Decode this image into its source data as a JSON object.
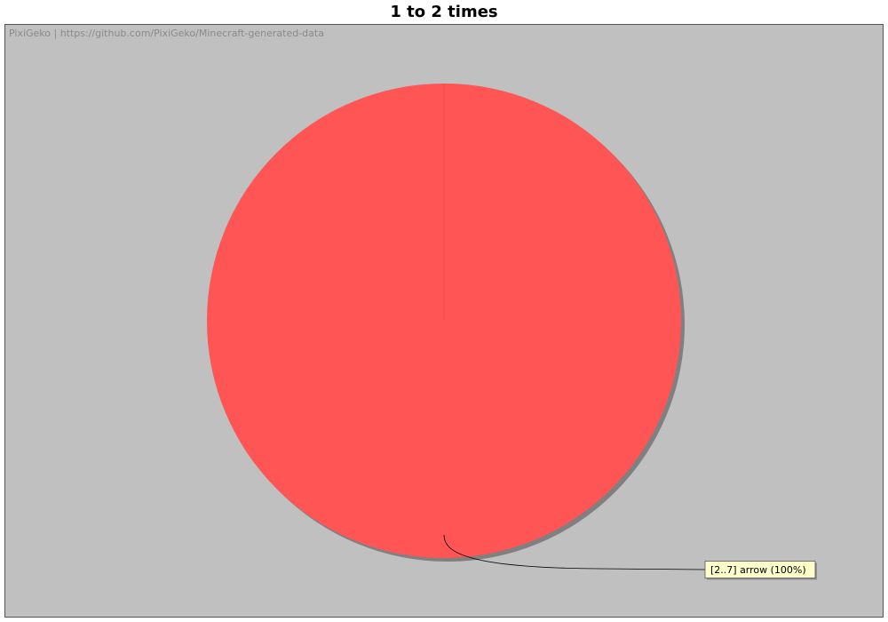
{
  "chart_data": {
    "type": "pie",
    "title": "1 to 2 times",
    "slices": [
      {
        "label": "[2..7] arrow (100%)",
        "name": "[2..7] arrow",
        "value": 100,
        "percent": 100,
        "color": "#ff5555"
      }
    ],
    "background_color": "#c0c0c0",
    "shadow_color": "#808080",
    "label_box_color": "#ffffcc"
  },
  "watermark": "PixiGeko | https://github.com/PixiGeko/Minecraft-generated-data"
}
